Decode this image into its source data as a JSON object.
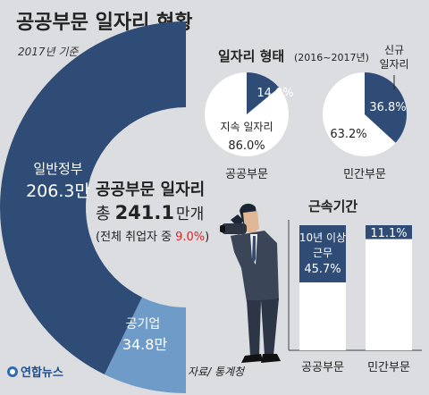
{
  "title": "공공부문 일자리 현황",
  "date_note": "2017년 기준",
  "source": "자료/ 통계청",
  "logo_text": "연합뉴스",
  "center": {
    "heading": "공공부문 일자리",
    "total_prefix": "총",
    "total_value": "241.1",
    "total_unit": "만개",
    "share_prefix": "(전체 취업자 중",
    "share_value": "9.0%",
    "share_suffix": ")"
  },
  "colors": {
    "navy": "#2f4c76",
    "light_blue": "#6f9bc9",
    "red": "#d7262b",
    "bg": "#dcdde0"
  },
  "chart_data": [
    {
      "type": "pie",
      "title": "",
      "subtitle": "2017년 기준",
      "slices": [
        {
          "label": "일반정부",
          "value": 206.3,
          "value_label": "206.3만",
          "color": "#2f4c76"
        },
        {
          "label": "공기업",
          "value": 34.8,
          "value_label": "34.8만",
          "color": "#6f9bc9"
        }
      ]
    },
    {
      "type": "pie",
      "title": "일자리 형태",
      "period": "(2016~2017년)",
      "panels": [
        {
          "name": "공공부문",
          "slices": [
            {
              "label": "신규 일자리",
              "value": 14.0,
              "value_label": "14.0%",
              "color": "#2f4c76"
            },
            {
              "label": "지속 일자리",
              "value": 86.0,
              "value_label": "86.0%",
              "color": "#ffffff"
            }
          ]
        },
        {
          "name": "민간부문",
          "slices": [
            {
              "label": "신규 일자리",
              "value": 36.8,
              "value_label": "36.8%",
              "color": "#2f4c76"
            },
            {
              "label": "",
              "value": 63.2,
              "value_label": "63.2%",
              "color": "#ffffff"
            }
          ]
        }
      ],
      "callout": "신규\n일자리",
      "inner_label": "지속 일자리"
    },
    {
      "type": "bar",
      "title": "근속기간",
      "categories": [
        "공공부문",
        "민간부문"
      ],
      "series": [
        {
          "name": "10년 이상 근무",
          "values": [
            45.7,
            11.1
          ]
        }
      ],
      "series_label_lines": [
        "10년 이상",
        "근무"
      ],
      "value_labels": [
        "45.7%",
        "11.1%"
      ],
      "ylim": [
        0,
        100
      ]
    }
  ]
}
